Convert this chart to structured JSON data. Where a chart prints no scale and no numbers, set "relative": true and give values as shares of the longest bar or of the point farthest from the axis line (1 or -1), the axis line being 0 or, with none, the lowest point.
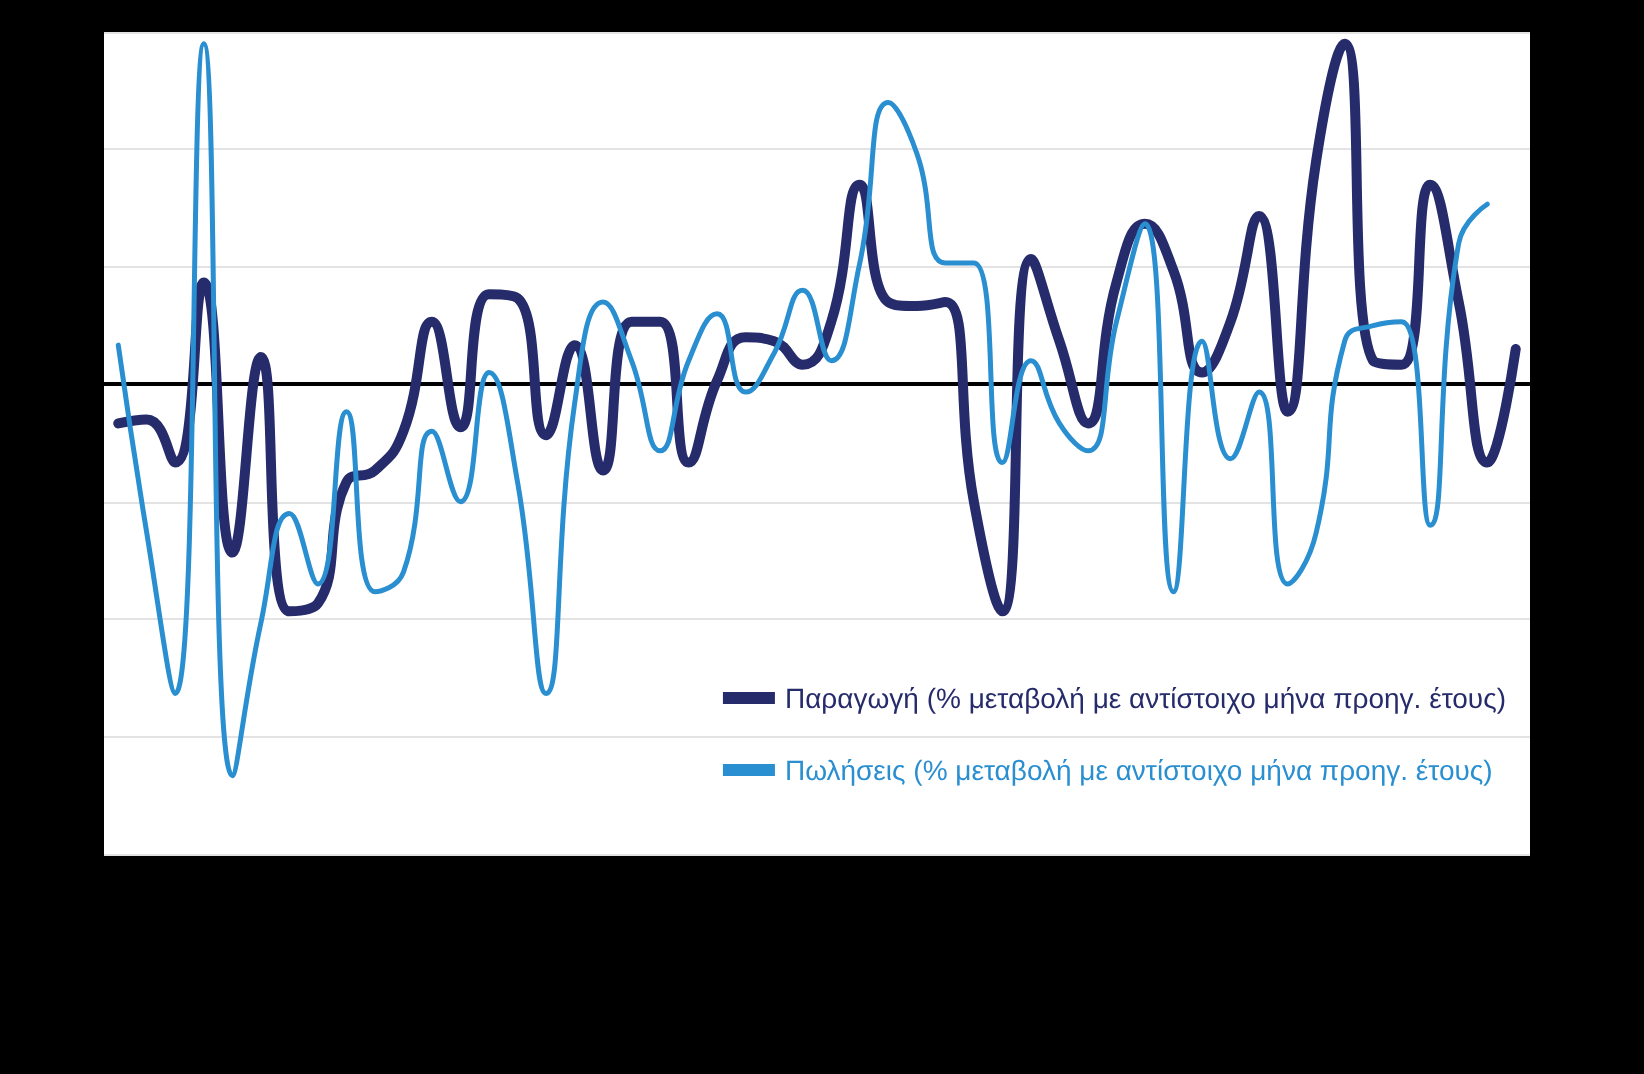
{
  "chart_data": {
    "type": "line",
    "relative": true,
    "categories": [
      null,
      null,
      null,
      null,
      null,
      null,
      null,
      null,
      null,
      null,
      null,
      null,
      null,
      null,
      null,
      null,
      null,
      null,
      null,
      null,
      null,
      null,
      null,
      null,
      null,
      null,
      null,
      null,
      null,
      null,
      null,
      null,
      null,
      null,
      null,
      null,
      null,
      null,
      null,
      null,
      null,
      null,
      null,
      null,
      null,
      null,
      null,
      null,
      null,
      null
    ],
    "series": [
      {
        "name": "Παραγωγή (% μεταβολή με αντίστοιχο μήνα προηγ. έτους)",
        "color": "#262b6b",
        "values": [
          -0.1,
          -0.09,
          -0.2,
          0.26,
          -0.43,
          0.07,
          -0.58,
          -0.56,
          -0.25,
          -0.22,
          -0.12,
          0.16,
          -0.11,
          0.23,
          0.22,
          -0.13,
          0.1,
          -0.22,
          0.16,
          0.16,
          -0.2,
          0.01,
          0.12,
          0.11,
          0.05,
          0.16,
          0.51,
          0.21,
          0.2,
          0.21,
          -0.3,
          -0.58,
          0.32,
          0.11,
          -0.1,
          0.26,
          0.41,
          0.29,
          0.03,
          0.16,
          0.43,
          -0.07,
          0.57,
          0.87,
          0.06,
          0.05,
          0.51,
          0.21,
          -0.2,
          0.09
        ]
      },
      {
        "name": "Πωλήσεις (% μεταβολή με αντίστοιχο μήνα προηγ. έτους)",
        "color": "#2a8fd0",
        "values": [
          0.1,
          -0.38,
          -0.79,
          0.87,
          -1,
          -0.61,
          -0.33,
          -0.51,
          -0.07,
          -0.53,
          -0.48,
          -0.12,
          -0.3,
          0.03,
          -0.25,
          -0.79,
          -0.05,
          0.21,
          0.06,
          -0.17,
          0.06,
          0.18,
          -0.02,
          0.08,
          0.24,
          0.06,
          0.31,
          0.72,
          0.59,
          0.31,
          0.31,
          -0.2,
          0.06,
          -0.1,
          -0.17,
          0.16,
          0.41,
          -0.53,
          0.11,
          -0.19,
          -0.02,
          -0.51,
          -0.38,
          0.11,
          0.15,
          0.16,
          -0.36,
          0.36,
          0.46,
          null
        ]
      }
    ],
    "grid": "y",
    "legend": "bottom right",
    "marker": "none",
    "line_style": "solid"
  }
}
